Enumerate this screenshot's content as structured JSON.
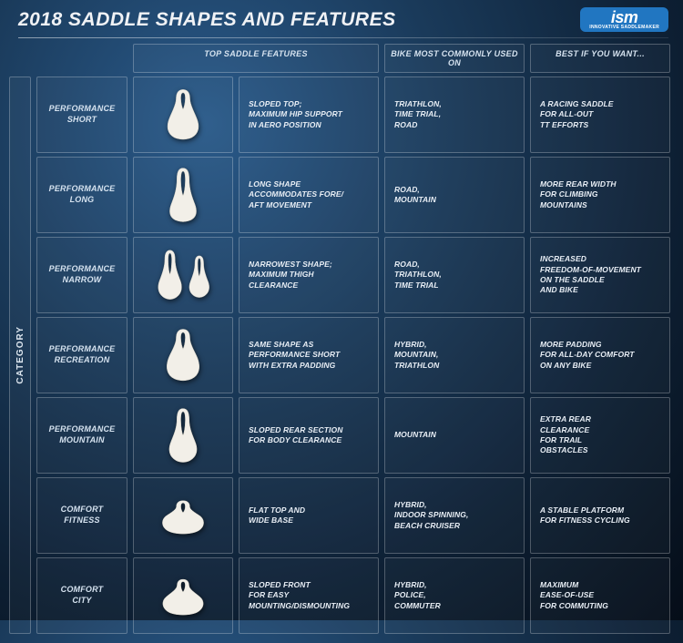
{
  "title": "2018 SADDLE SHAPES AND FEATURES",
  "logo": {
    "text": "ism",
    "sub": "INNOVATIVE SADDLEMAKER"
  },
  "category_label": "CATEGORY",
  "columns": {
    "features": "TOP SADDLE FEATURES",
    "bike": "BIKE MOST COMMONLY USED ON",
    "best": "BEST IF YOU WANT..."
  },
  "rows": [
    {
      "name": "PERFORMANCE\nSHORT",
      "shape": "short",
      "features": "SLOPED TOP;\nMAXIMUM HIP SUPPORT\nIN AERO POSITION",
      "bike": "TRIATHLON,\nTIME TRIAL,\nROAD",
      "best": "A RACING SADDLE\nFOR ALL-OUT\nTT EFFORTS"
    },
    {
      "name": "PERFORMANCE\nLONG",
      "shape": "long",
      "features": "LONG SHAPE\nACCOMMODATES FORE/\nAFT MOVEMENT",
      "bike": "ROAD,\nMOUNTAIN",
      "best": "MORE REAR WIDTH\nFOR CLIMBING\nMOUNTAINS"
    },
    {
      "name": "PERFORMANCE\nNARROW",
      "shape": "narrow",
      "features": "NARROWEST SHAPE;\nMAXIMUM THIGH\nCLEARANCE",
      "bike": "ROAD,\nTRIATHLON,\nTIME TRIAL",
      "best": "INCREASED\nFREEDOM-OF-MOVEMENT\nON THE SADDLE\nAND BIKE"
    },
    {
      "name": "PERFORMANCE\nRECREATION",
      "shape": "recreation",
      "features": "SAME SHAPE AS\nPERFORMANCE SHORT\nWITH EXTRA PADDING",
      "bike": "HYBRID,\nMOUNTAIN,\nTRIATHLON",
      "best": "MORE PADDING\nFOR ALL-DAY COMFORT\nON ANY BIKE"
    },
    {
      "name": "PERFORMANCE\nMOUNTAIN",
      "shape": "mountain",
      "features": "SLOPED REAR SECTION\nFOR BODY CLEARANCE",
      "bike": "MOUNTAIN",
      "best": "EXTRA REAR\nCLEARANCE\nFOR TRAIL\nOBSTACLES"
    },
    {
      "name": "COMFORT\nFITNESS",
      "shape": "fitness",
      "features": "FLAT TOP AND\nWIDE BASE",
      "bike": "HYBRID,\nINDOOR SPINNING,\nBEACH CRUISER",
      "best": "A STABLE PLATFORM\nFOR FITNESS CYCLING"
    },
    {
      "name": "COMFORT\nCITY",
      "shape": "city",
      "features": "SLOPED FRONT\nFOR EASY\nMOUNTING/DISMOUNTING",
      "bike": "HYBRID,\nPOLICE,\nCOMMUTER",
      "best": "MAXIMUM\nEASE-OF-USE\nFOR COMMUTING"
    }
  ],
  "style": {
    "saddle_fill": "#f2efe8",
    "saddle_stroke": "#d8d4c8"
  }
}
